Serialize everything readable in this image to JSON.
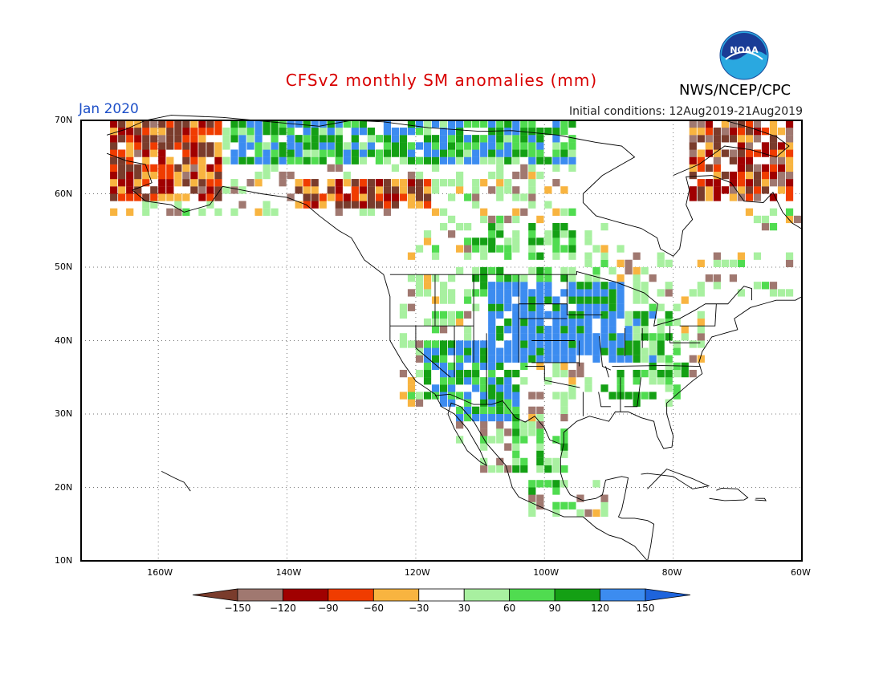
{
  "title": "CFSv2 monthly SM anomalies (mm)",
  "title_color": "#d80000",
  "agency": "NWS/NCEP/CPC",
  "valid_month": "Jan 2020",
  "valid_color": "#1e50c8",
  "initial_conditions": "Initial conditions: 12Aug2019-21Aug2019",
  "logo_text": "NOAA",
  "logo_icon": "noaa-logo-icon",
  "map": {
    "lon_range": [
      -172,
      -60
    ],
    "lat_range": [
      10,
      70
    ],
    "lat_labels": [
      "70N",
      "60N",
      "50N",
      "40N",
      "30N",
      "20N",
      "10N"
    ],
    "lat_values": [
      70,
      60,
      50,
      40,
      30,
      20,
      10
    ],
    "lon_labels": [
      "160W",
      "140W",
      "120W",
      "100W",
      "80W",
      "60W"
    ],
    "lon_values": [
      -160,
      -140,
      -120,
      -100,
      -80,
      -60
    ],
    "grid": "dotted"
  },
  "colorbar": {
    "bins": [
      {
        "color": "#7a3c2c"
      },
      {
        "color": "#a07870"
      },
      {
        "color": "#a00000"
      },
      {
        "color": "#f03c00"
      },
      {
        "color": "#f8b440"
      },
      {
        "color": "#ffffff"
      },
      {
        "color": "#a8f0a0"
      },
      {
        "color": "#50dc50"
      },
      {
        "color": "#14a014"
      },
      {
        "color": "#3c8cf0"
      },
      {
        "color": "#1e64dc"
      }
    ],
    "labels": [
      "−150",
      "−120",
      "−90",
      "−60",
      "−30",
      "30",
      "60",
      "90",
      "120",
      "150"
    ]
  },
  "anomaly_regions": [
    {
      "area": "Alaska west",
      "lon": [
        -170,
        -150
      ],
      "lat": [
        58,
        68
      ],
      "class": "negative"
    },
    {
      "area": "Northern Canada",
      "lon": [
        -150,
        -100
      ],
      "lat": [
        63,
        70
      ],
      "class": "positive"
    },
    {
      "area": "Western Canada",
      "lon": [
        -140,
        -118
      ],
      "lat": [
        57,
        62
      ],
      "class": "negative"
    },
    {
      "area": "Great Plains",
      "lon": [
        -110,
        -90
      ],
      "lat": [
        37,
        47
      ],
      "class": "strong positive"
    },
    {
      "area": "Southwest US",
      "lon": [
        -120,
        -105
      ],
      "lat": [
        28,
        40
      ],
      "class": "positive"
    },
    {
      "area": "Southeast US",
      "lon": [
        -92,
        -78
      ],
      "lat": [
        28,
        36
      ],
      "class": "weak positive"
    },
    {
      "area": "Northeast Canada",
      "lon": [
        -78,
        -62
      ],
      "lat": [
        58,
        67
      ],
      "class": "negative"
    }
  ]
}
